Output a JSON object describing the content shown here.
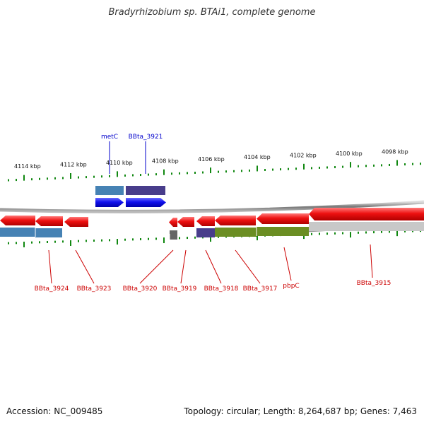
{
  "title": "Bradyrhizobium sp. BTAi1, complete genome",
  "footer": {
    "accession": "Accession: NC_009485",
    "summary": "Topology: circular; Length: 8,264,687 bp; Genes: 7,463"
  },
  "ruler": {
    "labels": [
      "4114 kbp",
      "4112 kbp",
      "4110 kbp",
      "4108 kbp",
      "4106 kbp",
      "4104 kbp",
      "4102 kbp",
      "4100 kbp",
      "4098 kbp"
    ]
  },
  "gene_labels": {
    "top": [
      "metC",
      "BBta_3921"
    ],
    "bottom": [
      "BBta_3924",
      "BBta_3923",
      "BBta_3920",
      "BBta_3919",
      "BBta_3918",
      "BBta_3917",
      "pbpC",
      "BBta_3915"
    ]
  },
  "colors": {
    "title": "#333333",
    "forward_gene": "#1010ee",
    "reverse_gene": "#ee1111",
    "top_label": "#0000cc",
    "bottom_label": "#cc0000",
    "tick": "#118811",
    "backbone": "#888888",
    "cog_blue": "#4682b4",
    "cog_purple": "#483d8b",
    "cog_olive": "#6b8e23",
    "cog_gray": "#c8c8c8",
    "cog_darkgray": "#666666"
  }
}
